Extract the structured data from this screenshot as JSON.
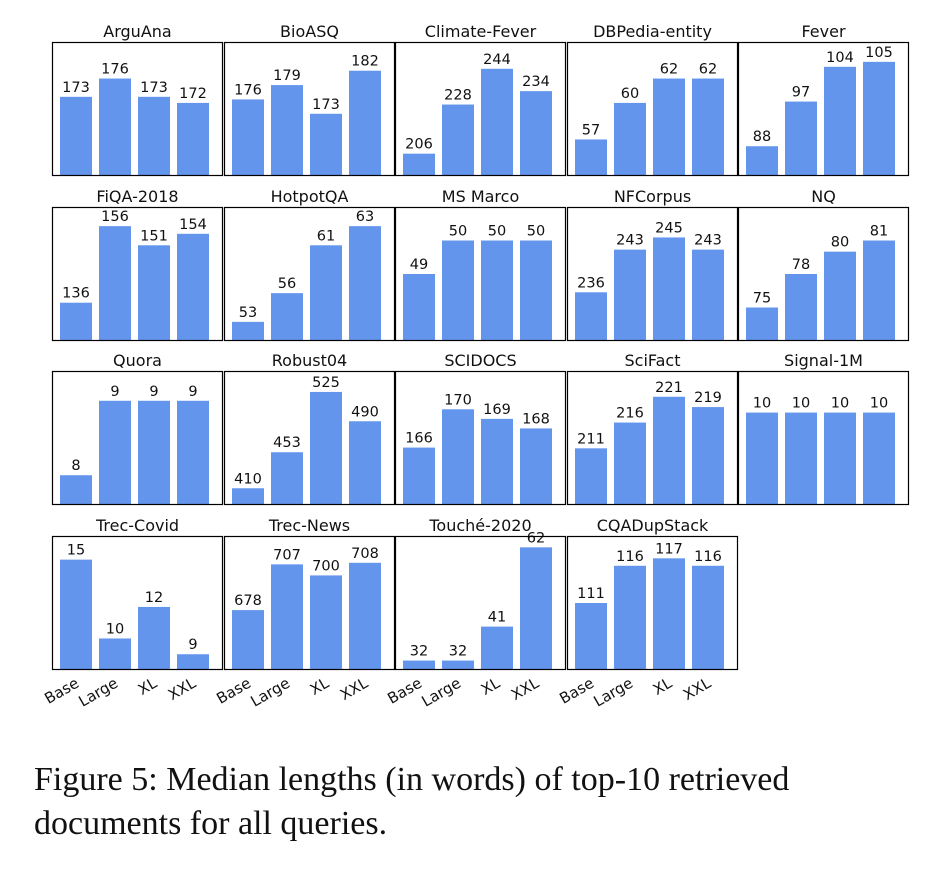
{
  "chart_data": {
    "type": "bar",
    "categories": [
      "Base",
      "Large",
      "XL",
      "XXL"
    ],
    "bar_color": "#6495ED",
    "grid": false,
    "panels": [
      {
        "title": "ArguAna",
        "values": [
          173,
          176,
          173,
          172
        ],
        "ylim": [
          160,
          182
        ],
        "labels": [
          "173",
          "176",
          "173",
          "172"
        ]
      },
      {
        "title": "BioASQ",
        "values": [
          176,
          179,
          173,
          182
        ],
        "ylim": [
          160,
          188
        ],
        "labels": [
          "176",
          "179",
          "173",
          "182"
        ]
      },
      {
        "title": "Climate-Fever",
        "values": [
          206,
          228,
          244,
          234
        ],
        "ylim": [
          196,
          256
        ],
        "labels": [
          "206",
          "228",
          "244",
          "234"
        ]
      },
      {
        "title": "DBPedia-entity",
        "values": [
          57,
          60,
          62,
          62
        ],
        "ylim": [
          54,
          65
        ],
        "labels": [
          "57",
          "60",
          "62",
          "62"
        ]
      },
      {
        "title": "Fever",
        "values": [
          88,
          97,
          104,
          105
        ],
        "ylim": [
          82,
          109
        ],
        "labels": [
          "88",
          "97",
          "104",
          "105"
        ]
      },
      {
        "title": "FiQA-2018",
        "values": [
          136,
          156,
          151,
          154
        ],
        "ylim": [
          126,
          161
        ],
        "labels": [
          "136",
          "156",
          "151",
          "154"
        ]
      },
      {
        "title": "HotpotQA",
        "values": [
          53,
          56,
          61,
          63
        ],
        "ylim": [
          51,
          65
        ],
        "labels": [
          "53",
          "56",
          "61",
          "63"
        ]
      },
      {
        "title": "MS Marco",
        "values": [
          49,
          50,
          50,
          50
        ],
        "ylim": [
          47,
          51
        ],
        "labels": [
          "49",
          "50",
          "50",
          "50"
        ]
      },
      {
        "title": "NFCorpus",
        "values": [
          236,
          243,
          245,
          243
        ],
        "ylim": [
          228,
          250
        ],
        "labels": [
          "236",
          "243",
          "245",
          "243"
        ]
      },
      {
        "title": "NQ",
        "values": [
          75,
          78,
          80,
          81
        ],
        "ylim": [
          72,
          84
        ],
        "labels": [
          "75",
          "78",
          "80",
          "81"
        ]
      },
      {
        "title": "Quora",
        "values": [
          8,
          9,
          9,
          9
        ],
        "ylim": [
          7.6,
          9.4
        ],
        "labels": [
          "8",
          "9",
          "9",
          "9"
        ]
      },
      {
        "title": "Robust04",
        "values": [
          410,
          453,
          525,
          490
        ],
        "ylim": [
          390,
          550
        ],
        "labels": [
          "410",
          "453",
          "525",
          "490"
        ]
      },
      {
        "title": "SCIDOCS",
        "values": [
          166,
          170,
          169,
          168
        ],
        "ylim": [
          160,
          174
        ],
        "labels": [
          "166",
          "170",
          "169",
          "168"
        ]
      },
      {
        "title": "SciFact",
        "values": [
          211,
          216,
          221,
          219
        ],
        "ylim": [
          200,
          226
        ],
        "labels": [
          "211",
          "216",
          "221",
          "219"
        ]
      },
      {
        "title": "Signal-1M",
        "values": [
          10,
          10,
          10,
          10
        ],
        "ylim": [
          0,
          14.5
        ],
        "labels": [
          "10",
          "10",
          "10",
          "10"
        ]
      },
      {
        "title": "Trec-Covid",
        "values": [
          15,
          10,
          12,
          9
        ],
        "ylim": [
          8,
          16.5
        ],
        "labels": [
          "15",
          "10",
          "12",
          "9"
        ]
      },
      {
        "title": "Trec-News",
        "values": [
          678,
          707,
          700,
          708
        ],
        "ylim": [
          640,
          725
        ],
        "labels": [
          "678",
          "707",
          "700",
          "708"
        ]
      },
      {
        "title": "Touché-2020",
        "values": [
          32,
          32,
          41,
          62
        ],
        "ylim": [
          29.5,
          65
        ],
        "labels": [
          "32",
          "32",
          "41",
          "62"
        ]
      },
      {
        "title": "CQADupStack",
        "values": [
          111,
          116,
          117,
          116
        ],
        "ylim": [
          102,
          120
        ],
        "labels": [
          "111",
          "116",
          "117",
          "116"
        ]
      }
    ]
  },
  "caption": "Figure 5: Median lengths (in words) of top-10 retrieved documents for all queries."
}
